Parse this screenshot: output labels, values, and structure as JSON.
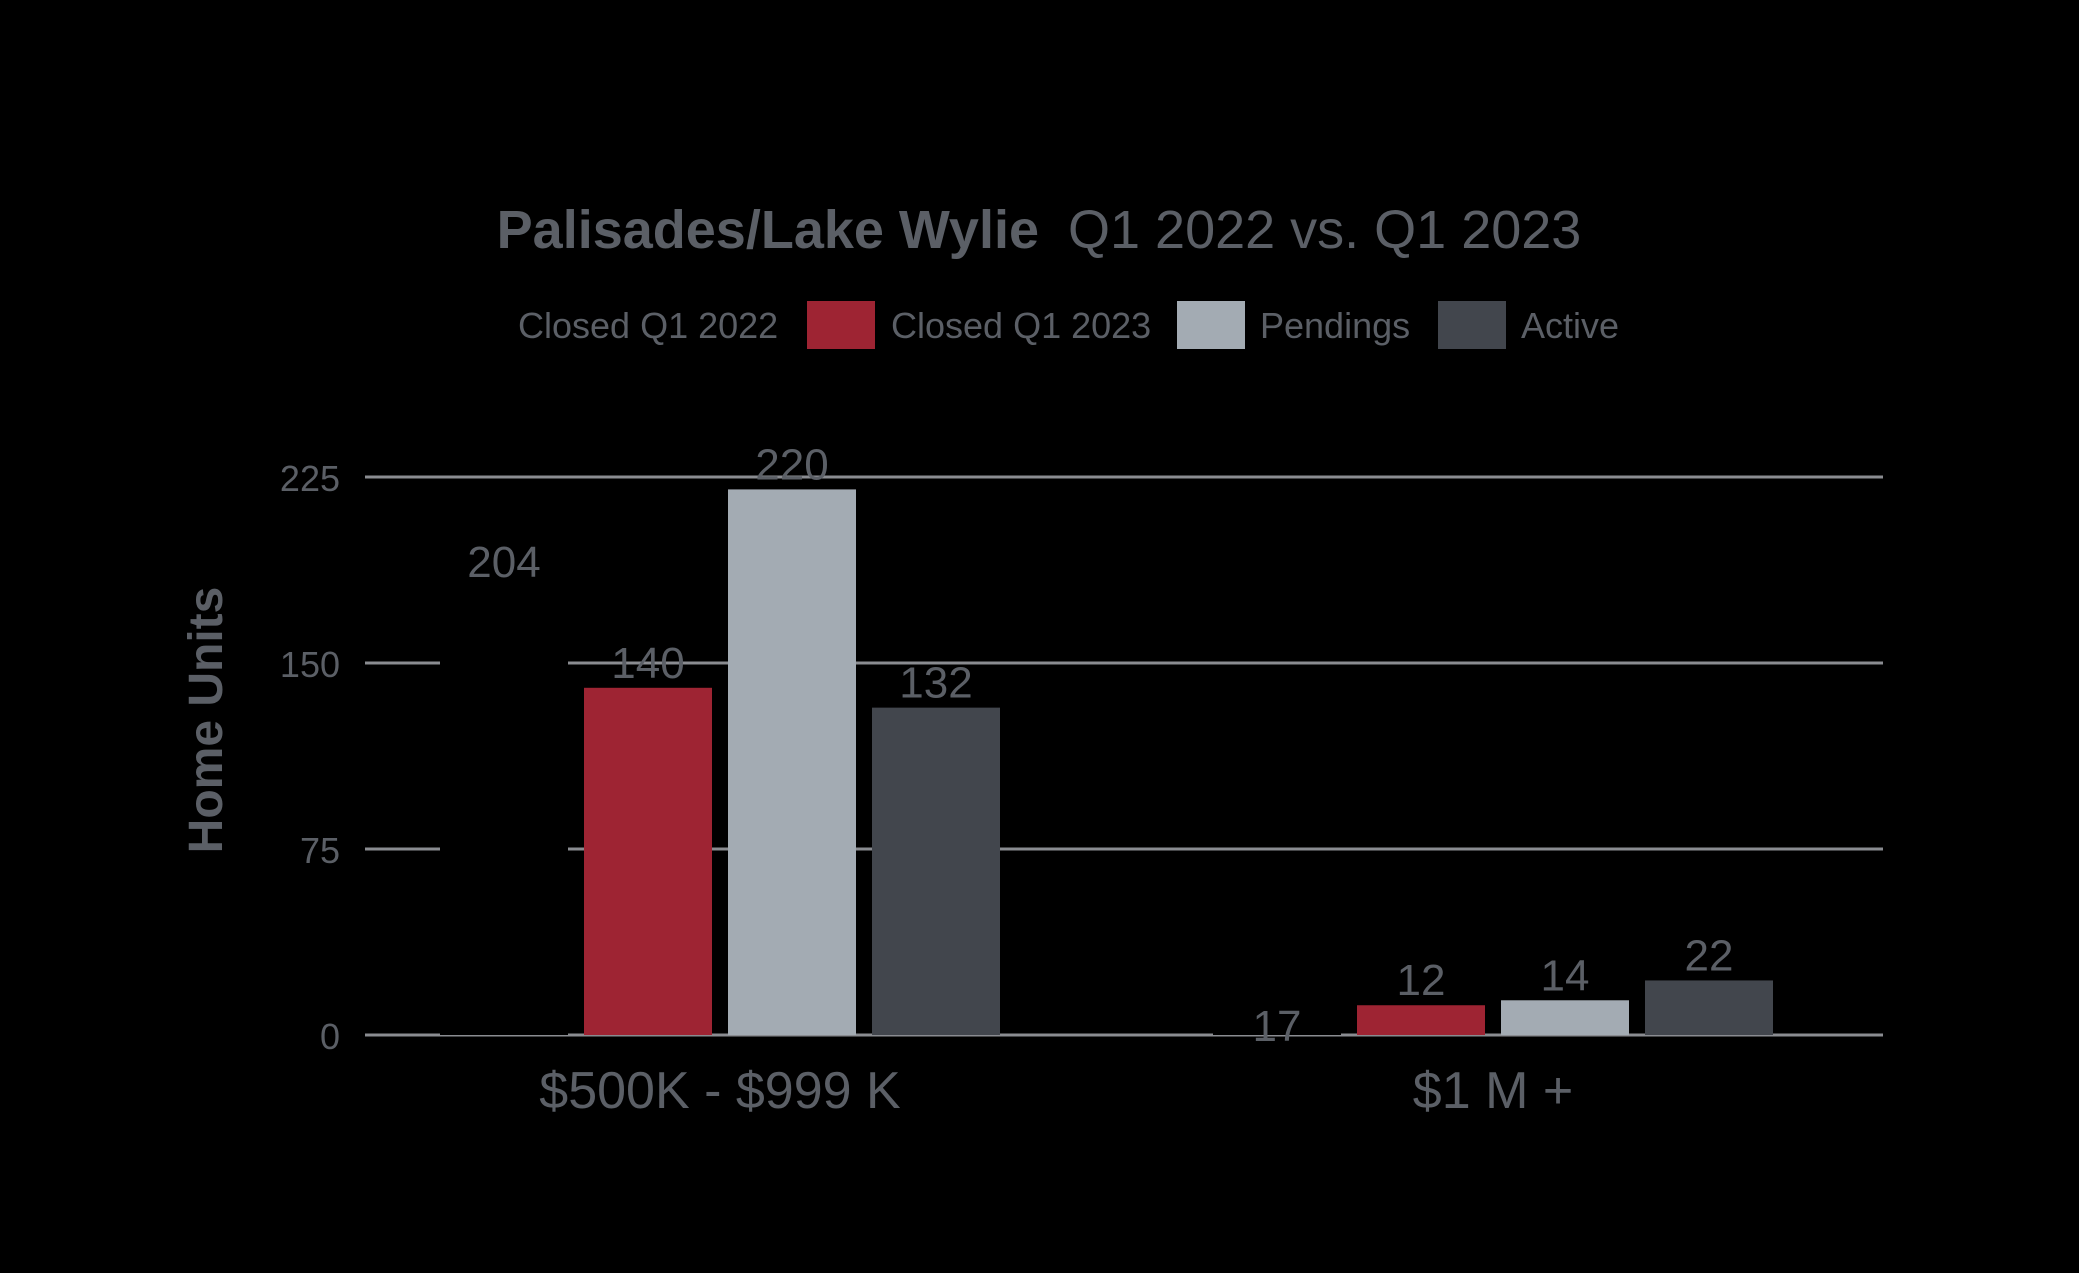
{
  "chart_data": {
    "type": "bar",
    "title": {
      "bold": "Palisades/Lake Wylie",
      "regular": "Q1 2022 vs. Q1 2023"
    },
    "xlabel": "",
    "ylabel": "Home Units",
    "ylim": [
      0,
      225
    ],
    "yticks": [
      0,
      75,
      150,
      225
    ],
    "grid": true,
    "legend_position": "top-center",
    "categories": [
      "$500K - $999 K",
      "$1 M +"
    ],
    "series": [
      {
        "name": "Closed Q1 2022",
        "values": [
          204,
          17
        ],
        "color": "#000000"
      },
      {
        "name": "Closed Q1 2023",
        "values": [
          140,
          12
        ],
        "color": "#9e2433"
      },
      {
        "name": "Pendings",
        "values": [
          220,
          14
        ],
        "color": "#a3abb3"
      },
      {
        "name": "Active",
        "values": [
          132,
          22
        ],
        "color": "#42464d"
      }
    ],
    "text_color": "#5b5f66",
    "grid_color": "#8a8c91"
  }
}
